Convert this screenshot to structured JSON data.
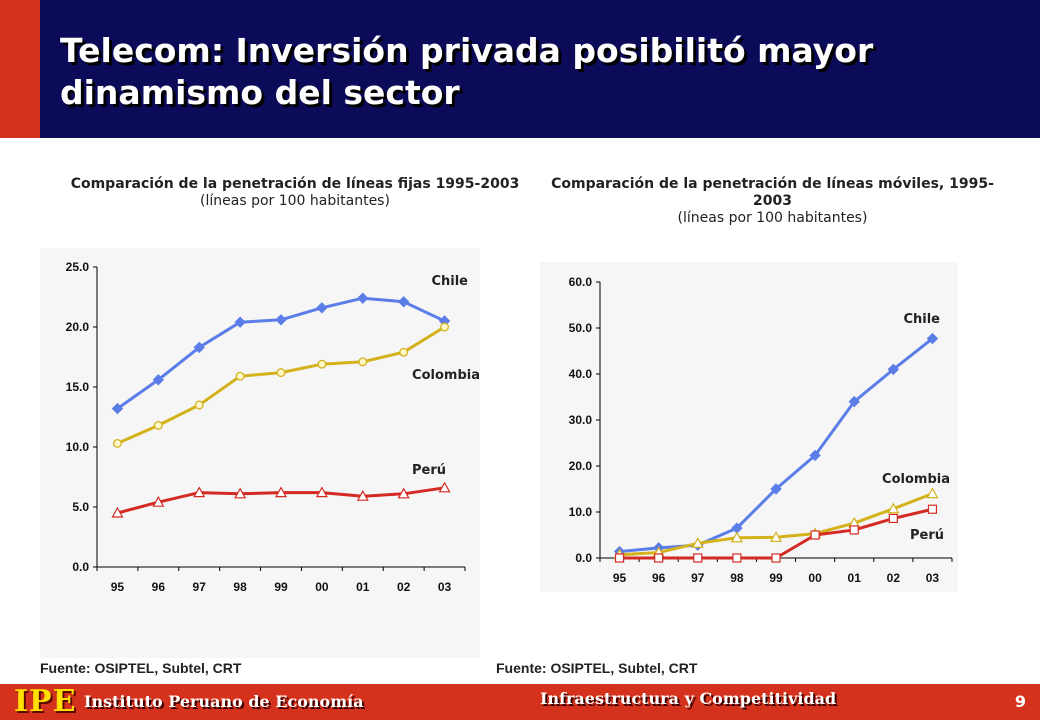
{
  "slide": {
    "title": "Telecom: Inversión privada posibilitó mayor dinamismo del sector",
    "page_number": "9"
  },
  "footer": {
    "logo": "IPE",
    "organization": "Instituto Peruano de Economía",
    "section": "Infraestructura y Competitividad"
  },
  "colors": {
    "header_bg": "#0b0b5a",
    "accent_red": "#d4321c",
    "chile": "#5b7de8",
    "colombia": "#d4b21c",
    "peru": "#d42a24"
  },
  "chart_data": [
    {
      "type": "line",
      "title": "Comparación de la penetración de líneas fijas 1995-2003",
      "subtitle": "(líneas por 100 habitantes)",
      "source": "Fuente: OSIPTEL, Subtel, CRT",
      "categories": [
        "95",
        "96",
        "97",
        "98",
        "99",
        "00",
        "01",
        "02",
        "03"
      ],
      "y_ticks": [
        "0.0",
        "5.0",
        "10.0",
        "15.0",
        "20.0",
        "25.0"
      ],
      "ylim": [
        0,
        25
      ],
      "grid": false,
      "series": [
        {
          "name": "Chile",
          "color": "#5b7de8",
          "marker": "diamond",
          "values": [
            13.2,
            15.6,
            18.3,
            20.4,
            20.6,
            21.6,
            22.4,
            22.1,
            20.5
          ]
        },
        {
          "name": "Colombia",
          "color": "#d4b21c",
          "marker": "circle",
          "values": [
            10.3,
            11.8,
            13.5,
            15.9,
            16.2,
            16.9,
            17.1,
            17.9,
            20.0
          ]
        },
        {
          "name": "Perú",
          "color": "#d42a24",
          "marker": "triangle",
          "values": [
            4.5,
            5.4,
            6.2,
            6.1,
            6.2,
            6.2,
            5.9,
            6.1,
            6.6
          ]
        }
      ]
    },
    {
      "type": "line",
      "title": "Comparación de la penetración de líneas móviles, 1995-2003",
      "subtitle": "(líneas por 100 habitantes)",
      "source": "Fuente: OSIPTEL, Subtel, CRT",
      "categories": [
        "95",
        "96",
        "97",
        "98",
        "99",
        "00",
        "01",
        "02",
        "03"
      ],
      "y_ticks": [
        "0.0",
        "10.0",
        "20.0",
        "30.0",
        "40.0",
        "50.0",
        "60.0"
      ],
      "ylim": [
        0,
        60
      ],
      "grid": false,
      "series": [
        {
          "name": "Chile",
          "color": "#5b7de8",
          "marker": "diamond",
          "values": [
            1.4,
            2.2,
            2.8,
            6.5,
            15.0,
            22.3,
            34.0,
            41.0,
            47.7
          ]
        },
        {
          "name": "Colombia",
          "color": "#d4b21c",
          "marker": "triangle",
          "values": [
            0.7,
            1.2,
            3.2,
            4.4,
            4.5,
            5.3,
            7.6,
            10.7,
            14.0
          ]
        },
        {
          "name": "Perú",
          "color": "#d42a24",
          "marker": "square",
          "values": [
            0.0,
            0.0,
            0.0,
            0.0,
            0.0,
            5.0,
            6.1,
            8.6,
            10.6
          ]
        }
      ]
    }
  ]
}
